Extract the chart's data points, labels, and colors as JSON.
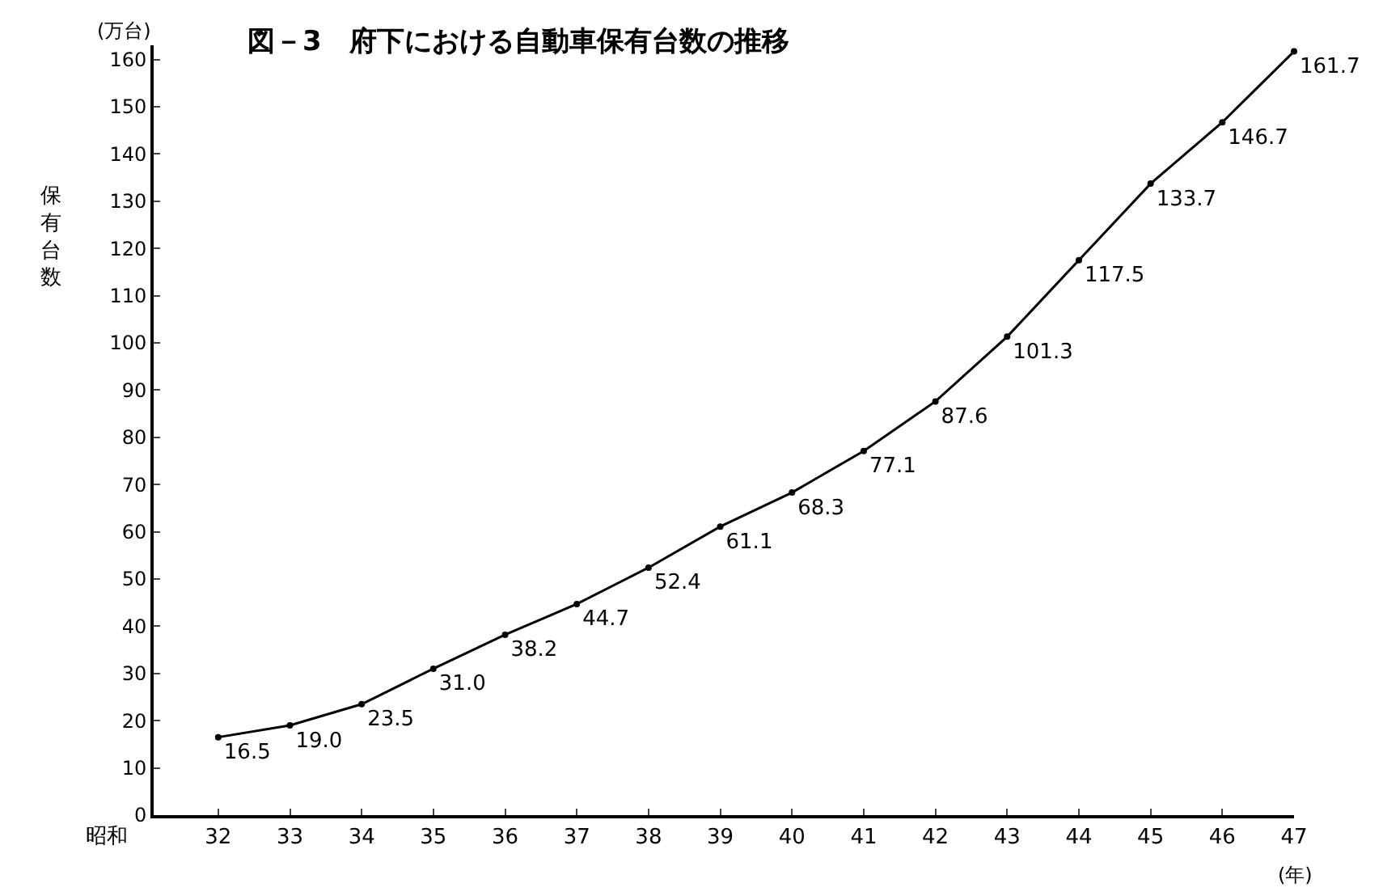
{
  "chart_data": {
    "type": "line",
    "title": "図－3　府下における自動車保有台数の推移",
    "xlabel": "(年)",
    "ylabel": "保有台数",
    "annotations": [
      "(万台)",
      "昭和"
    ],
    "x": [
      32,
      33,
      34,
      35,
      36,
      37,
      38,
      39,
      40,
      41,
      42,
      43,
      44,
      45,
      46,
      47
    ],
    "series": [
      {
        "color": "#000000",
        "values": [
          16.5,
          19.0,
          23.5,
          31.0,
          38.2,
          44.7,
          52.4,
          61.1,
          68.3,
          77.1,
          87.6,
          101.3,
          117.5,
          133.7,
          146.7,
          161.7
        ],
        "value_labels": [
          "16.5",
          "19.0",
          "23.5",
          "31.0",
          "38.2",
          "44.7",
          "52.4",
          "61.1",
          "68.3",
          "77.1",
          "87.6",
          "101.3",
          "117.5",
          "133.7",
          "146.7",
          "161.7"
        ]
      }
    ],
    "xlim": [
      31.1,
      47
    ],
    "xticks": [
      32,
      33,
      34,
      35,
      36,
      37,
      38,
      39,
      40,
      41,
      42,
      43,
      44,
      45,
      46,
      47
    ],
    "ylim": [
      0,
      163
    ],
    "yticks": [
      0,
      10,
      20,
      30,
      40,
      50,
      60,
      70,
      80,
      90,
      100,
      110,
      120,
      130,
      140,
      150,
      160
    ],
    "marker": "circle",
    "line_style": "solid"
  }
}
